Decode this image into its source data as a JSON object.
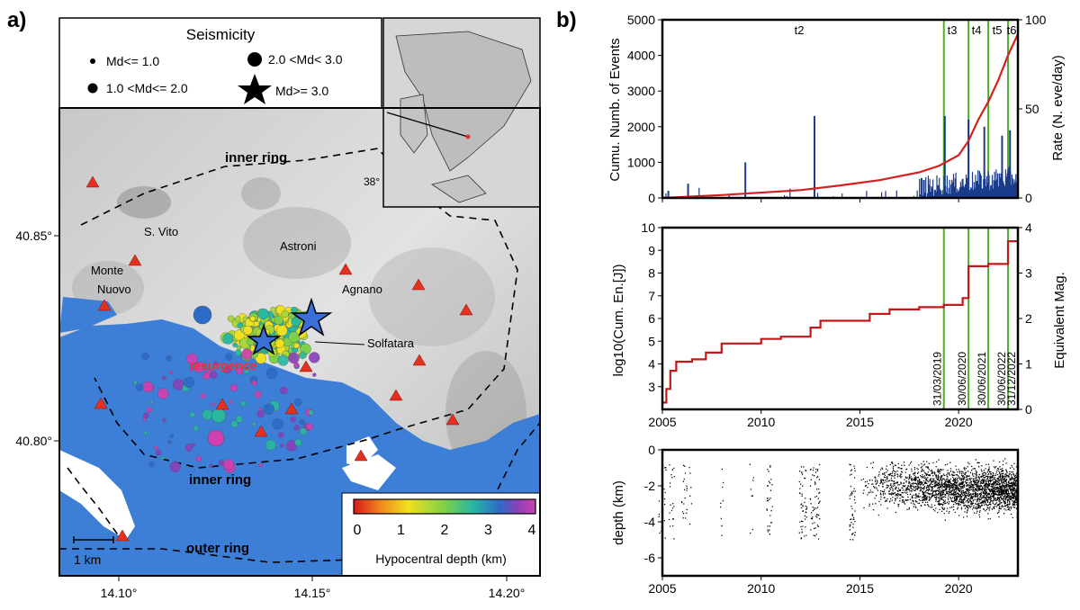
{
  "panel_a": {
    "label": "a)",
    "legend_title": "Seismicity",
    "legend_items": [
      "Md<= 1.0",
      "1.0 <Md<= 2.0",
      "2.0 <Md< 3.0",
      "Md>= 3.0"
    ],
    "map_labels": {
      "inner_ring_top": "inner ring",
      "inner_ring_bottom": "inner ring",
      "outer_ring": "outer ring",
      "s_vito": "S. Vito",
      "astroni": "Astroni",
      "monte_nuovo_1": "Monte",
      "monte_nuovo_2": "Nuovo",
      "agnano": "Agnano",
      "solfatara": "Solfatara",
      "resurgence": "resurgence",
      "inset_lat": "38°"
    },
    "scale_bar": "1 km",
    "lat_ticks": [
      "40.85°",
      "40.80°"
    ],
    "lon_ticks": [
      "14.10°",
      "14.15°",
      "14.20°"
    ],
    "colorbar": {
      "ticks": [
        "0",
        "1",
        "2",
        "3",
        "4"
      ],
      "title": "Hypocentral depth (km)"
    },
    "colors": {
      "sea": "#3d7fd6",
      "station": "#e53020",
      "resurgence": "#ff2a2a",
      "star": "#3a6fd8"
    }
  },
  "panel_b": {
    "label": "b)",
    "chart_data": [
      {
        "type": "line",
        "title": "",
        "ylabel": "Cumu. Numb. of Events",
        "ylabel_right": "Rate (N. eve/day)",
        "xlim": [
          2005,
          2023
        ],
        "ylim": [
          0,
          5000
        ],
        "ylim_right": [
          0,
          100
        ],
        "yticks": [
          "0",
          "1000",
          "2000",
          "3000",
          "4000",
          "5000"
        ],
        "yticks_right": [
          "0",
          "50",
          "100"
        ],
        "period_labels": [
          "t2",
          "t3",
          "t4",
          "t5",
          "t6"
        ],
        "series": [
          {
            "name": "Cumulative number",
            "color": "#d42020",
            "x": [
              2005,
              2008,
              2012,
              2014,
              2016,
              2018,
              2019,
              2020,
              2020.5,
              2021,
              2021.5,
              2022,
              2022.5,
              2023
            ],
            "y": [
              0,
              80,
              220,
              350,
              500,
              720,
              900,
              1200,
              1600,
              2200,
              2700,
              3300,
              4000,
              4600
            ]
          },
          {
            "name": "Rate",
            "color": "#1a3a8a",
            "x": [
              2005.3,
              2006.3,
              2009.2,
              2012.7,
              2019.3,
              2020.5,
              2021.3,
              2022.2,
              2022.6
            ],
            "y": [
              4,
              8,
              20,
              46,
              46,
              44,
              40,
              35,
              38
            ]
          }
        ]
      },
      {
        "type": "line",
        "ylabel": "log10(Cum. En.[J])",
        "ylabel_right": "Equivalent Mag.",
        "xlim": [
          2005,
          2023
        ],
        "ylim": [
          2,
          10
        ],
        "ylim_right": [
          0,
          4
        ],
        "yticks": [
          "3",
          "4",
          "5",
          "6",
          "7",
          "8",
          "9",
          "10"
        ],
        "yticks_right": [
          "0",
          "1",
          "2",
          "3",
          "4"
        ],
        "xticks": [
          "2005",
          "2010",
          "2015",
          "2020"
        ],
        "vertical_lines": [
          2019.25,
          2020.5,
          2021.5,
          2022.5,
          2023.0
        ],
        "vertical_labels": [
          "31/03/2019",
          "30/06/2020",
          "30/06/2021",
          "30/06/2022",
          "31/12/2022"
        ],
        "series": [
          {
            "name": "Cumulative energy",
            "color": "#c41818",
            "x": [
              2005,
              2005.2,
              2005.4,
              2005.7,
              2006.5,
              2007.2,
              2008,
              2010,
              2011,
              2012.5,
              2013,
              2015.5,
              2016.5,
              2018,
              2019.25,
              2020.2,
              2020.5,
              2021.5,
              2022.5,
              2023
            ],
            "y": [
              2.3,
              2.9,
              3.7,
              4.1,
              4.2,
              4.5,
              4.9,
              5.1,
              5.2,
              5.6,
              5.9,
              6.2,
              6.4,
              6.5,
              6.6,
              6.9,
              8.3,
              8.4,
              9.4,
              9.4
            ]
          }
        ]
      },
      {
        "type": "scatter",
        "ylabel": "depth (km)",
        "xlim": [
          2005,
          2023
        ],
        "ylim": [
          -7,
          0
        ],
        "yticks": [
          "0",
          "-2",
          "-4",
          "-6"
        ],
        "xticks": [
          "2005",
          "2010",
          "2015",
          "2020"
        ],
        "series": [
          {
            "name": "Hypocentral depth",
            "color": "#000000"
          }
        ]
      }
    ],
    "colors": {
      "vline": "#4fae2c",
      "cum": "#d42020",
      "rate": "#1a3a8a"
    }
  }
}
